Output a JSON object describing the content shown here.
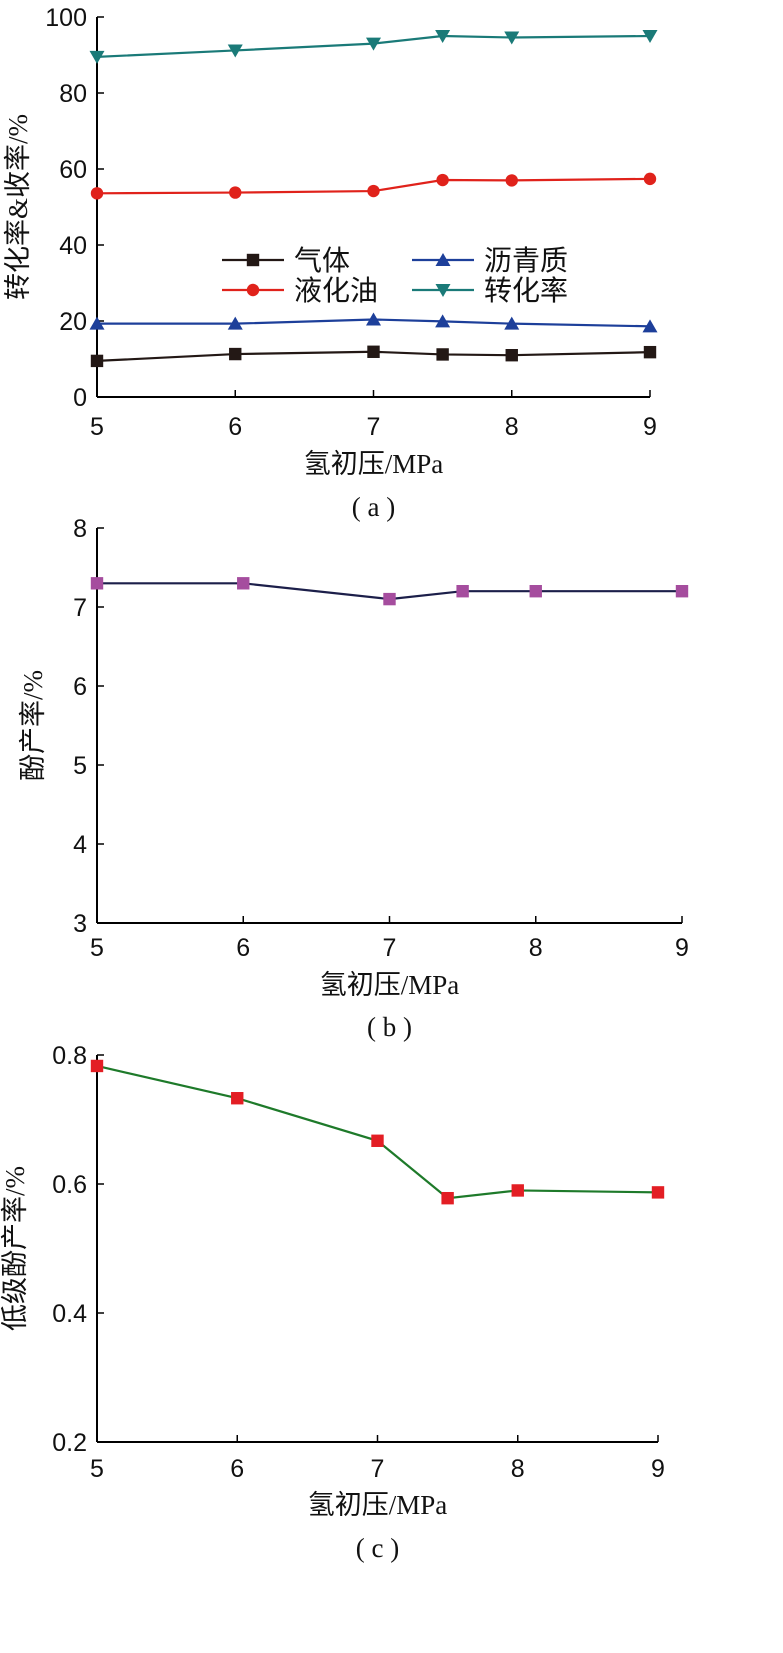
{
  "chart_data": [
    {
      "type": "line",
      "caption": "( a )",
      "xlabel": "氢初压/MPa",
      "ylabel": "转化率&收率/%",
      "xlim": [
        5,
        9
      ],
      "ylim": [
        0,
        100
      ],
      "xticks": [
        5,
        6,
        7,
        8,
        9
      ],
      "yticks": [
        0,
        20,
        40,
        60,
        80,
        100
      ],
      "x": [
        5,
        6,
        7,
        7.5,
        8,
        9
      ],
      "legend_position": "center",
      "series": [
        {
          "name": "气体",
          "marker": "square",
          "color": "#231815",
          "values": [
            9.5,
            11.3,
            11.9,
            11.2,
            11.0,
            11.8
          ]
        },
        {
          "name": "液化油",
          "marker": "circle",
          "color": "#e0221b",
          "values": [
            53.6,
            53.8,
            54.2,
            57.1,
            57.0,
            57.4
          ]
        },
        {
          "name": "沥青质",
          "marker": "triangle-up",
          "color": "#1d3f9a",
          "values": [
            19.3,
            19.3,
            20.4,
            19.9,
            19.3,
            18.6
          ]
        },
        {
          "name": "转化率",
          "marker": "triangle-down",
          "color": "#1a7a78",
          "values": [
            89.5,
            91.2,
            93.0,
            95.0,
            94.6,
            95.0
          ]
        }
      ]
    },
    {
      "type": "line",
      "caption": "( b )",
      "xlabel": "氢初压/MPa",
      "ylabel": "酚产率/%",
      "xlim": [
        5,
        9
      ],
      "ylim": [
        3,
        8
      ],
      "xticks": [
        5,
        6,
        7,
        8,
        9
      ],
      "yticks": [
        3,
        4,
        5,
        6,
        7,
        8
      ],
      "x": [
        5,
        6,
        7,
        7.5,
        8,
        9
      ],
      "series": [
        {
          "name": "",
          "marker": "square",
          "color": "#1c1f4a",
          "marker_color": "#a54d9e",
          "values": [
            7.3,
            7.3,
            7.1,
            7.2,
            7.2,
            7.2
          ]
        }
      ]
    },
    {
      "type": "line",
      "caption": "( c )",
      "xlabel": "氢初压/MPa",
      "ylabel": "低级酚产率/%",
      "xlim": [
        5,
        9
      ],
      "ylim": [
        0.2,
        0.8
      ],
      "xticks": [
        5,
        6,
        7,
        8,
        9
      ],
      "yticks": [
        0.2,
        0.4,
        0.6,
        0.8
      ],
      "ytick_labels": [
        "0.2",
        "0.4",
        "0.6",
        "0.8"
      ],
      "x": [
        5,
        6,
        7,
        7.5,
        8,
        9
      ],
      "series": [
        {
          "name": "",
          "marker": "square",
          "color": "#1e7a2a",
          "marker_color": "#e31e24",
          "values": [
            0.783,
            0.733,
            0.667,
            0.578,
            0.59,
            0.587
          ]
        }
      ]
    }
  ]
}
